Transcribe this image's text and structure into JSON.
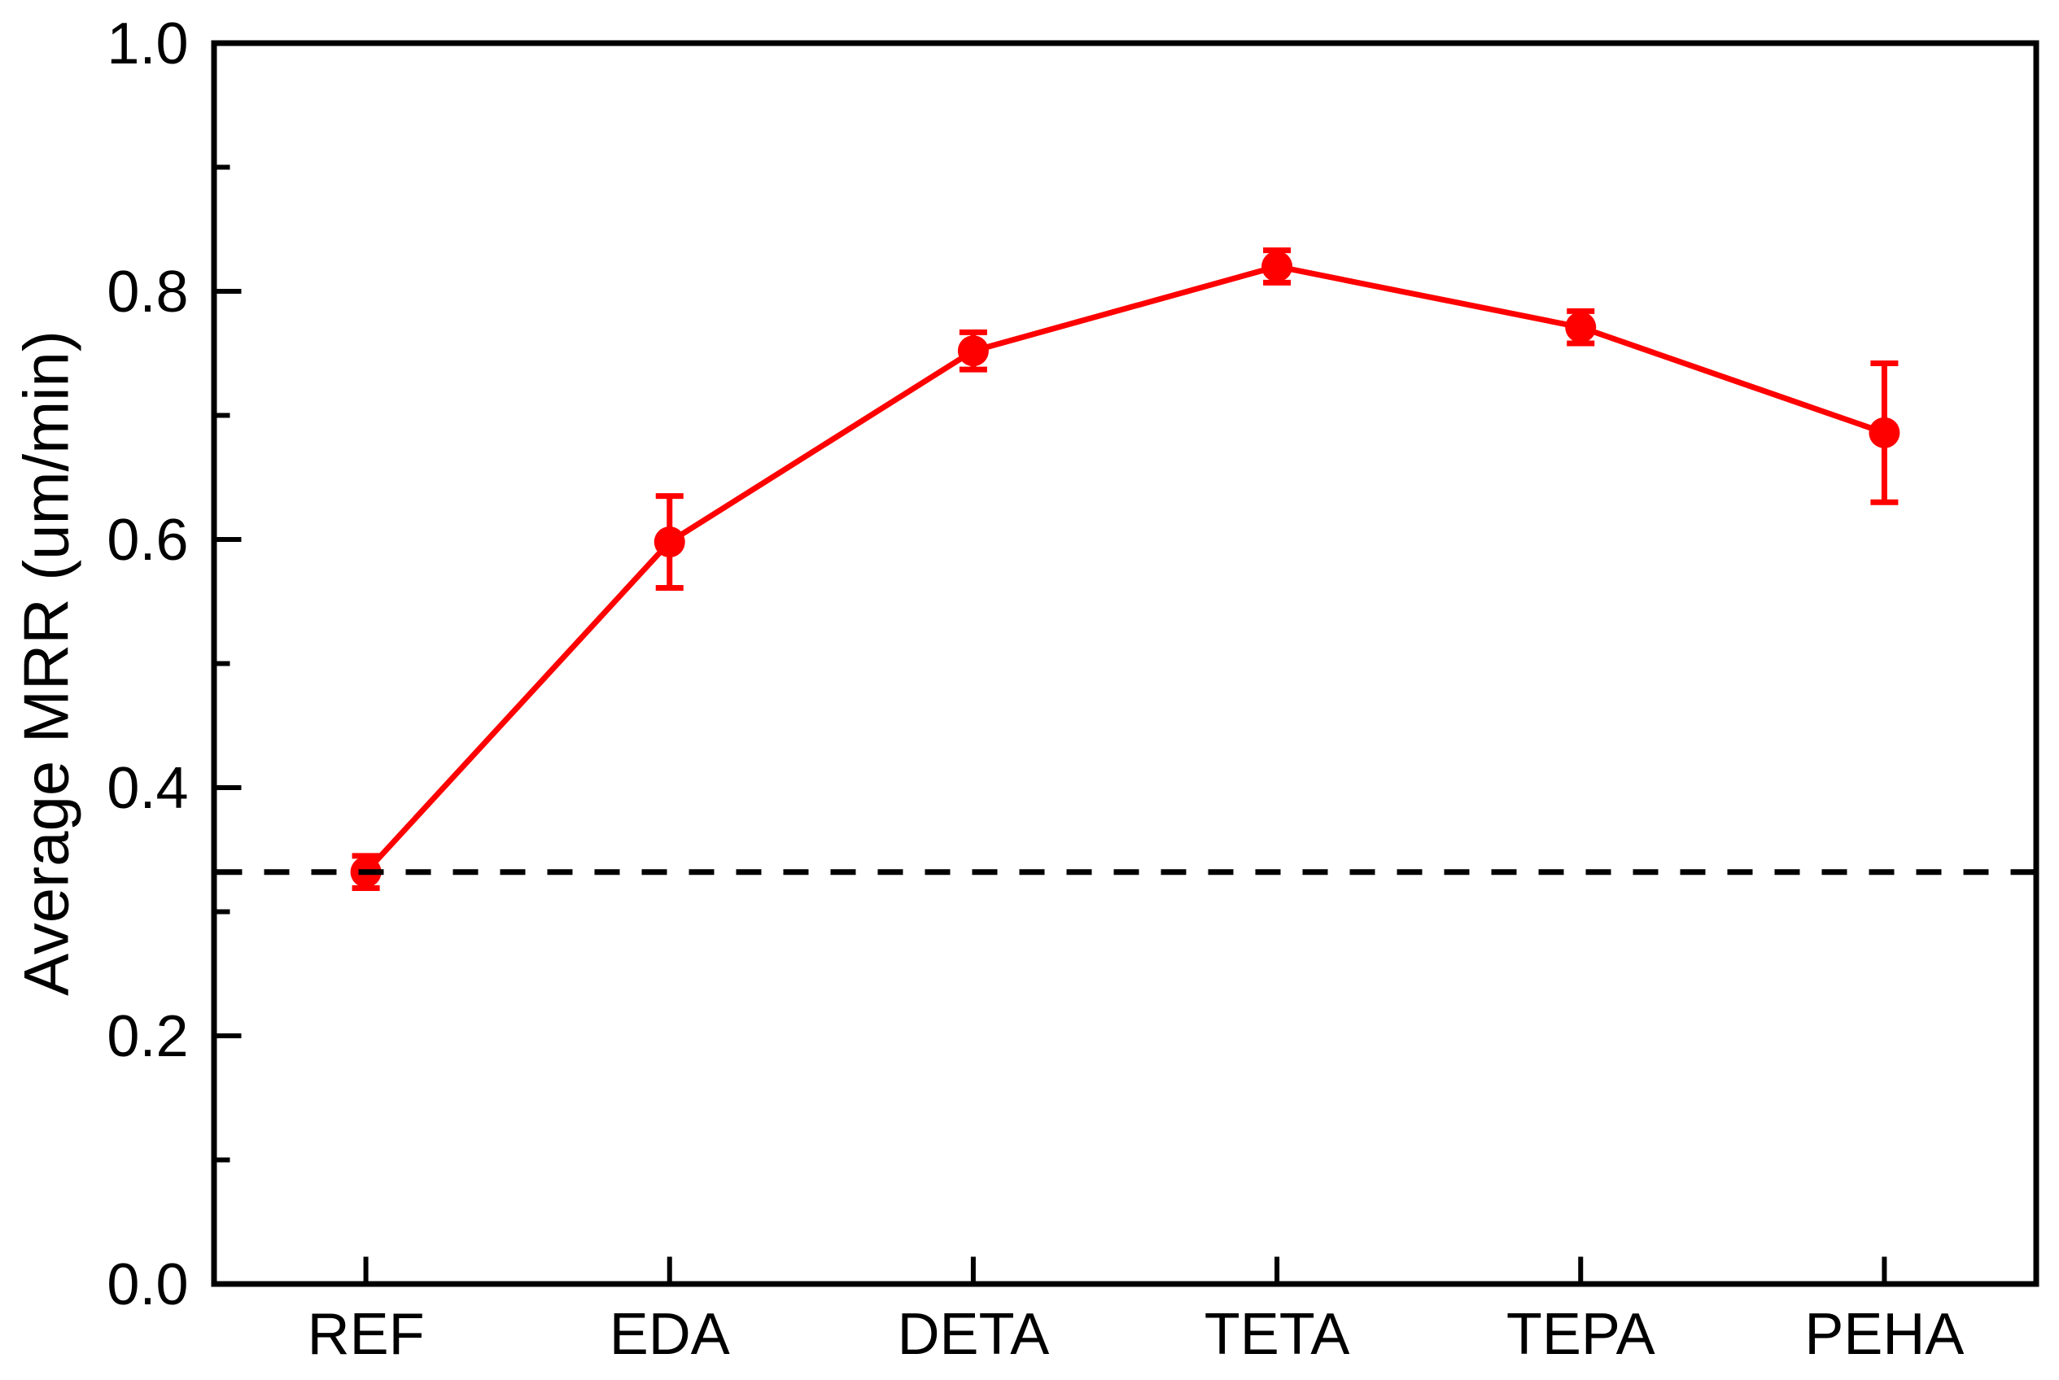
{
  "chart_data": {
    "type": "line",
    "title": "",
    "xlabel": "",
    "ylabel": "Average MRR (um/min)",
    "categories": [
      "REF",
      "EDA",
      "DETA",
      "TETA",
      "TEPA",
      "PEHA"
    ],
    "series": [
      {
        "name": "Average MRR",
        "values": [
          0.332,
          0.598,
          0.752,
          0.82,
          0.771,
          0.686
        ],
        "errors": [
          0.013,
          0.037,
          0.015,
          0.013,
          0.013,
          0.056
        ],
        "color": "#ff0000",
        "marker": "filled-circle",
        "line_style": "solid"
      }
    ],
    "reference_line": {
      "y": 0.332,
      "style": "dashed",
      "color": "#000000",
      "note": "horizontal dashed baseline at REF level"
    },
    "ylim": [
      0.0,
      1.0
    ],
    "yticks_major": [
      0.0,
      0.2,
      0.4,
      0.6,
      0.8,
      1.0
    ],
    "ytick_labels": [
      "0.0",
      "0.2",
      "0.4",
      "0.6",
      "0.8",
      "1.0"
    ],
    "yticks_minor": [
      0.1,
      0.3,
      0.5,
      0.7,
      0.9
    ],
    "grid": false,
    "legend": false,
    "frame_color": "#000000",
    "background_color": "#ffffff"
  }
}
